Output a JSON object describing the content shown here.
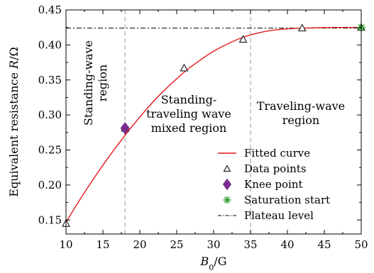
{
  "chart_data": {
    "type": "line",
    "xlabel": "B0/G",
    "ylabel": "Equivalent resistance R/Ω",
    "xlim": [
      10,
      50
    ],
    "ylim": [
      0.13,
      0.45
    ],
    "x_ticks": [
      "10",
      "15",
      "20",
      "25",
      "30",
      "35",
      "40",
      "45",
      "50"
    ],
    "y_ticks": [
      "0.15",
      "0.20",
      "0.25",
      "0.30",
      "0.35",
      "0.40",
      "0.45"
    ],
    "grid": false,
    "legend_position": "bottom-right",
    "fitted_curve": {
      "name": "Fitted curve",
      "color": "#e41a1c",
      "x": [
        10,
        12,
        14,
        16,
        18,
        20,
        22,
        24,
        26,
        28,
        30,
        32,
        34,
        36,
        38,
        40,
        42,
        44,
        46,
        48,
        50
      ],
      "y": [
        0.147,
        0.181,
        0.213,
        0.243,
        0.271,
        0.297,
        0.321,
        0.342,
        0.361,
        0.377,
        0.391,
        0.402,
        0.411,
        0.417,
        0.421,
        0.423,
        0.424,
        0.4245,
        0.425,
        0.425,
        0.425
      ]
    },
    "data_points": {
      "name": "Data points",
      "color": "#000000",
      "x": [
        10,
        18,
        26,
        34,
        42,
        50
      ],
      "y": [
        0.145,
        0.281,
        0.367,
        0.408,
        0.424,
        0.425
      ]
    },
    "knee_point": {
      "name": "Knee point",
      "color": "#7b2d8e",
      "x": 18,
      "y": 0.281
    },
    "saturation_start": {
      "name": "Saturation start",
      "color": "#2ca02c",
      "x": 50,
      "y": 0.425
    },
    "plateau_level": {
      "name": "Plateau level",
      "y": 0.424
    },
    "region_boundaries": [
      18,
      35
    ],
    "regions": [
      {
        "lines": [
          "Standing-wave",
          "region"
        ],
        "rotated": true
      },
      {
        "lines": [
          "Standing-",
          "traveling wave",
          "mixed region"
        ],
        "rotated": false
      },
      {
        "lines": [
          "Traveling-wave",
          "region"
        ],
        "rotated": false
      }
    ]
  }
}
